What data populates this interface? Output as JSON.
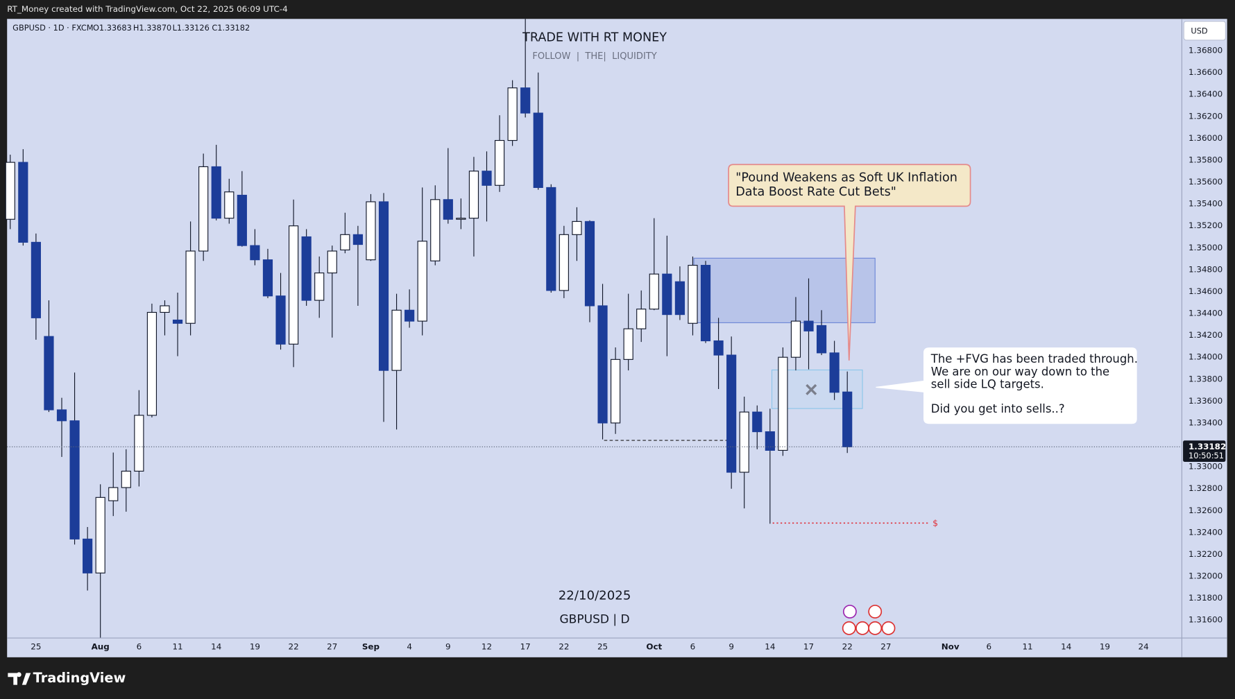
{
  "chart_data": {
    "type": "candlestick",
    "header": "RT_Money created with TradingView.com, Oct 22, 2025 06:09 UTC-4",
    "symbol": "GBPUSD · 1D · FXCM",
    "ohlc_legend": [
      "O1.33683",
      "H1.33870",
      "L1.33126",
      "C1.33182"
    ],
    "title": "TRADE WITH RT MONEY",
    "subtitle": "FOLLOW  |  THE|  LIQUIDITY",
    "date_label": "22/10/2025",
    "symbol_label": "GBPUSD | D",
    "currency": "USD",
    "countdown": "10:50:51",
    "target_marker": "$",
    "annotations": [
      {
        "lines": [
          "\"Pound Weakens as Soft UK Inflation",
          "Data Boost Rate Cut Bets\""
        ]
      },
      {
        "paragraphs": [
          [
            "The +FVG has been traded through.",
            "We are on our way down to the",
            "sell side LQ targets."
          ],
          [
            "Did you get into sells..?"
          ]
        ]
      }
    ],
    "brand": "TradingView",
    "up_color": "#ffffff",
    "down_color": "#1c3d99",
    "categories": [
      null,
      null,
      "25",
      null,
      null,
      null,
      null,
      "Aug",
      null,
      null,
      "6",
      null,
      null,
      "11",
      null,
      null,
      "14",
      null,
      null,
      "19",
      null,
      null,
      "22",
      null,
      null,
      "27",
      null,
      null,
      "Sep",
      null,
      null,
      "4",
      null,
      null,
      "9",
      null,
      null,
      "12",
      null,
      null,
      "17",
      null,
      null,
      "22",
      null,
      null,
      "25",
      null,
      null,
      null,
      "Oct",
      null,
      null,
      "6",
      null,
      null,
      "9",
      null,
      null,
      "14",
      null,
      null,
      "17",
      null,
      null,
      "22",
      null,
      null,
      "27",
      null,
      null,
      null,
      null,
      "Nov",
      null,
      null,
      "6",
      null,
      null,
      "11",
      null,
      null,
      "14",
      null,
      null,
      "19",
      null,
      null,
      "24",
      null,
      null,
      null
    ],
    "open": [
      1.3526,
      1.3578,
      1.3505,
      1.3419,
      1.3352,
      1.3342,
      1.3234,
      1.3203,
      1.3269,
      1.3281,
      1.3296,
      1.3347,
      1.3441,
      1.3434,
      1.3431,
      1.3497,
      1.3574,
      1.3527,
      1.3548,
      1.3502,
      1.3489,
      1.3456,
      1.3412,
      1.351,
      1.3452,
      1.3477,
      1.3498,
      1.3512,
      1.3489,
      1.3542,
      1.3388,
      1.3443,
      1.3433,
      1.3488,
      1.3544,
      1.3526,
      1.3527,
      1.357,
      1.3557,
      1.3598,
      1.3646,
      1.3623,
      1.3555,
      1.3461,
      1.3512,
      1.3524,
      1.3447,
      1.334,
      1.3398,
      1.3426,
      1.3444,
      1.3476,
      1.3469,
      1.3431,
      1.3484,
      1.3415,
      1.3402,
      1.3295,
      1.335,
      1.3332,
      1.3315,
      1.34,
      1.3433,
      1.3429,
      1.3404,
      1.33683,
      null,
      null,
      null,
      null,
      null,
      null,
      null,
      null,
      null,
      null,
      null,
      null,
      null,
      null,
      null,
      null,
      null,
      null,
      null,
      null,
      null,
      null,
      null,
      null,
      null,
      null
    ],
    "high": [
      1.3585,
      1.359,
      1.3513,
      1.3452,
      1.3363,
      1.3386,
      1.3245,
      1.3284,
      1.3313,
      1.3316,
      1.337,
      1.3449,
      1.3452,
      1.3459,
      1.3524,
      1.3586,
      1.3594,
      1.3563,
      1.357,
      1.3517,
      1.3499,
      1.3477,
      1.3544,
      1.3517,
      1.3492,
      1.3502,
      1.3532,
      1.352,
      1.3549,
      1.355,
      1.3458,
      1.3462,
      1.3555,
      1.3557,
      1.3591,
      1.3545,
      1.3583,
      1.3588,
      1.3621,
      1.3653,
      1.3709,
      1.366,
      1.3558,
      1.352,
      1.3537,
      1.3525,
      1.3467,
      1.3409,
      1.3458,
      1.3461,
      1.3527,
      1.3511,
      1.3483,
      1.3492,
      1.3488,
      1.3436,
      1.3419,
      1.3364,
      1.3356,
      1.3353,
      1.3409,
      1.3455,
      1.3472,
      1.3443,
      1.3415,
      1.3387,
      null,
      null,
      null,
      null,
      null,
      null,
      null,
      null,
      null,
      null,
      null,
      null,
      null,
      null,
      null,
      null,
      null,
      null,
      null,
      null,
      null,
      null,
      null,
      null,
      null,
      null
    ],
    "low": [
      1.3517,
      1.3502,
      1.3416,
      1.335,
      1.3309,
      1.3229,
      1.3187,
      1.3144,
      1.3255,
      1.3259,
      1.3282,
      1.3345,
      1.342,
      1.3401,
      1.342,
      1.3488,
      1.3525,
      1.3522,
      1.3501,
      1.3484,
      1.3454,
      1.3407,
      1.3391,
      1.3447,
      1.3436,
      1.3418,
      1.3495,
      1.3447,
      1.3488,
      1.3341,
      1.3334,
      1.3427,
      1.342,
      1.3484,
      1.3522,
      1.3517,
      1.3492,
      1.3524,
      1.3551,
      1.3593,
      1.3619,
      1.3553,
      1.3459,
      1.3454,
      1.3488,
      1.3432,
      1.3325,
      1.333,
      1.3388,
      1.3414,
      1.3443,
      1.3401,
      1.3434,
      1.342,
      1.3413,
      1.3371,
      1.328,
      1.3262,
      1.3316,
      1.3248,
      1.331,
      1.3388,
      1.3389,
      1.3402,
      1.3361,
      1.33126,
      null,
      null,
      null,
      null,
      null,
      null,
      null,
      null,
      null,
      null,
      null,
      null,
      null,
      null,
      null,
      null,
      null,
      null,
      null,
      null,
      null,
      null,
      null,
      null,
      null,
      null
    ],
    "close": [
      1.3578,
      1.3505,
      1.3436,
      1.3352,
      1.3342,
      1.3234,
      1.3203,
      1.3272,
      1.3281,
      1.3296,
      1.3347,
      1.3441,
      1.3447,
      1.3431,
      1.3497,
      1.3574,
      1.3527,
      1.3551,
      1.3502,
      1.3489,
      1.3456,
      1.3412,
      1.352,
      1.3452,
      1.3477,
      1.3497,
      1.3512,
      1.3503,
      1.3542,
      1.3388,
      1.3443,
      1.3433,
      1.3506,
      1.3544,
      1.3526,
      1.3527,
      1.357,
      1.3557,
      1.3598,
      1.3646,
      1.3623,
      1.3555,
      1.3461,
      1.3512,
      1.3524,
      1.3447,
      1.334,
      1.3398,
      1.3426,
      1.3444,
      1.3476,
      1.3439,
      1.3439,
      1.3484,
      1.3415,
      1.3402,
      1.3295,
      1.335,
      1.3332,
      1.3315,
      1.34,
      1.3433,
      1.3424,
      1.3404,
      1.3368,
      1.33182,
      null,
      null,
      null,
      null,
      null,
      null,
      null,
      null,
      null,
      null,
      null,
      null,
      null,
      null,
      null,
      null,
      null,
      null,
      null,
      null,
      null,
      null,
      null,
      null,
      null,
      null
    ],
    "ylim": [
      1.3144,
      1.3709
    ],
    "yticks": [
      {
        "value": 1.316,
        "label": "1.31600"
      },
      {
        "value": 1.318,
        "label": "1.31800"
      },
      {
        "value": 1.32,
        "label": "1.32000"
      },
      {
        "value": 1.322,
        "label": "1.32200"
      },
      {
        "value": 1.324,
        "label": "1.32400"
      },
      {
        "value": 1.326,
        "label": "1.32600"
      },
      {
        "value": 1.328,
        "label": "1.32800"
      },
      {
        "value": 1.33,
        "label": "1.33000"
      },
      {
        "value": 1.332,
        "label": "1.33200"
      },
      {
        "value": 1.334,
        "label": "1.33400"
      },
      {
        "value": 1.336,
        "label": "1.33600"
      },
      {
        "value": 1.338,
        "label": "1.33800"
      },
      {
        "value": 1.34,
        "label": "1.34000"
      },
      {
        "value": 1.342,
        "label": "1.34200"
      },
      {
        "value": 1.344,
        "label": "1.34400"
      },
      {
        "value": 1.346,
        "label": "1.34600"
      },
      {
        "value": 1.348,
        "label": "1.34800"
      },
      {
        "value": 1.35,
        "label": "1.35000"
      },
      {
        "value": 1.352,
        "label": "1.35200"
      },
      {
        "value": 1.354,
        "label": "1.35400"
      },
      {
        "value": 1.356,
        "label": "1.35600"
      },
      {
        "value": 1.358,
        "label": "1.35800"
      },
      {
        "value": 1.36,
        "label": "1.36000"
      },
      {
        "value": 1.362,
        "label": "1.36200"
      },
      {
        "value": 1.364,
        "label": "1.36400"
      },
      {
        "value": 1.366,
        "label": "1.36600"
      },
      {
        "value": 1.368,
        "label": "1.36800"
      }
    ],
    "grid": false
  }
}
